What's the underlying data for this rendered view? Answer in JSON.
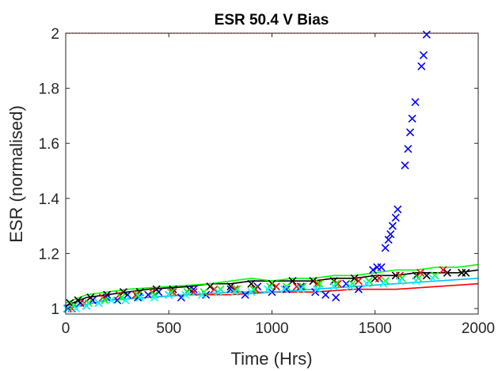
{
  "chart_data": {
    "type": "scatter",
    "title": "ESR 50.4 V Bias",
    "xlabel": "Time (Hrs)",
    "ylabel": "ESR (normalised)",
    "xlim": [
      0,
      2000
    ],
    "ylim": [
      0.98,
      2.0
    ],
    "xticks": [
      0,
      500,
      1000,
      1500,
      2000
    ],
    "yticks": [
      1,
      1.2,
      1.4,
      1.6,
      1.8,
      2
    ],
    "grid": false,
    "legend": "none",
    "reference_line": {
      "y": 2.0,
      "color": "#ff0000",
      "style": "dotted"
    },
    "series": [
      {
        "color": "#0000ff",
        "marker": "x",
        "points": [
          [
            10,
            1.0
          ],
          [
            40,
            1.01
          ],
          [
            70,
            1.02
          ],
          [
            100,
            1.01
          ],
          [
            130,
            1.03
          ],
          [
            160,
            1.02
          ],
          [
            200,
            1.04
          ],
          [
            250,
            1.03
          ],
          [
            300,
            1.05
          ],
          [
            350,
            1.04
          ],
          [
            400,
            1.05
          ],
          [
            450,
            1.06
          ],
          [
            500,
            1.05
          ],
          [
            560,
            1.04
          ],
          [
            620,
            1.07
          ],
          [
            680,
            1.05
          ],
          [
            740,
            1.06
          ],
          [
            800,
            1.07
          ],
          [
            870,
            1.05
          ],
          [
            930,
            1.08
          ],
          [
            1000,
            1.06
          ],
          [
            1070,
            1.07
          ],
          [
            1140,
            1.08
          ],
          [
            1210,
            1.06
          ],
          [
            1260,
            1.05
          ],
          [
            1310,
            1.04
          ],
          [
            1360,
            1.09
          ],
          [
            1420,
            1.07
          ],
          [
            1470,
            1.1
          ],
          [
            1490,
            1.14
          ],
          [
            1510,
            1.15
          ],
          [
            1530,
            1.15
          ],
          [
            1550,
            1.22
          ],
          [
            1565,
            1.25
          ],
          [
            1575,
            1.27
          ],
          [
            1585,
            1.3
          ],
          [
            1600,
            1.33
          ],
          [
            1610,
            1.36
          ],
          [
            1645,
            1.52
          ],
          [
            1660,
            1.58
          ],
          [
            1670,
            1.64
          ],
          [
            1680,
            1.69
          ],
          [
            1695,
            1.75
          ],
          [
            1725,
            1.88
          ],
          [
            1735,
            1.92
          ],
          [
            1750,
            1.995
          ]
        ]
      },
      {
        "color": "#000000",
        "marker": "x",
        "points": [
          [
            20,
            1.02
          ],
          [
            60,
            1.03
          ],
          [
            120,
            1.04
          ],
          [
            200,
            1.05
          ],
          [
            280,
            1.06
          ],
          [
            360,
            1.06
          ],
          [
            440,
            1.07
          ],
          [
            520,
            1.07
          ],
          [
            600,
            1.07
          ],
          [
            700,
            1.08
          ],
          [
            800,
            1.08
          ],
          [
            900,
            1.09
          ],
          [
            1000,
            1.09
          ],
          [
            1100,
            1.1
          ],
          [
            1200,
            1.1
          ],
          [
            1300,
            1.1
          ],
          [
            1400,
            1.11
          ],
          [
            1500,
            1.11
          ],
          [
            1600,
            1.12
          ],
          [
            1700,
            1.12
          ],
          [
            1750,
            1.12
          ],
          [
            1850,
            1.13
          ],
          [
            1920,
            1.13
          ],
          [
            1940,
            1.13
          ]
        ]
      },
      {
        "color": "#ff0000",
        "marker": "x",
        "points": [
          [
            30,
            1.0
          ],
          [
            90,
            1.02
          ],
          [
            180,
            1.04
          ],
          [
            260,
            1.05
          ],
          [
            340,
            1.05
          ],
          [
            420,
            1.06
          ],
          [
            520,
            1.06
          ],
          [
            620,
            1.06
          ],
          [
            720,
            1.07
          ],
          [
            820,
            1.07
          ],
          [
            920,
            1.07
          ],
          [
            1020,
            1.08
          ],
          [
            1120,
            1.08
          ],
          [
            1220,
            1.09
          ],
          [
            1320,
            1.09
          ],
          [
            1420,
            1.1
          ],
          [
            1520,
            1.11
          ],
          [
            1620,
            1.12
          ],
          [
            1720,
            1.13
          ],
          [
            1830,
            1.14
          ]
        ]
      },
      {
        "color": "#00ff00",
        "marker": "x",
        "points": [
          [
            40,
            1.01
          ],
          [
            110,
            1.02
          ],
          [
            190,
            1.03
          ],
          [
            270,
            1.04
          ],
          [
            350,
            1.05
          ],
          [
            430,
            1.05
          ],
          [
            510,
            1.06
          ],
          [
            590,
            1.06
          ],
          [
            670,
            1.06
          ],
          [
            750,
            1.07
          ],
          [
            830,
            1.07
          ],
          [
            910,
            1.07
          ],
          [
            990,
            1.08
          ],
          [
            1070,
            1.08
          ],
          [
            1150,
            1.08
          ],
          [
            1230,
            1.09
          ],
          [
            1310,
            1.09
          ],
          [
            1390,
            1.09
          ],
          [
            1470,
            1.1
          ],
          [
            1550,
            1.1
          ],
          [
            1630,
            1.11
          ],
          [
            1710,
            1.11
          ],
          [
            1790,
            1.12
          ]
        ]
      },
      {
        "color": "#00ffff",
        "marker": "x",
        "points": [
          [
            5,
            1.0
          ],
          [
            50,
            1.0
          ],
          [
            100,
            1.01
          ],
          [
            160,
            1.02
          ],
          [
            220,
            1.03
          ],
          [
            290,
            1.03
          ],
          [
            360,
            1.04
          ],
          [
            430,
            1.04
          ],
          [
            500,
            1.05
          ],
          [
            580,
            1.05
          ],
          [
            660,
            1.05
          ],
          [
            740,
            1.06
          ],
          [
            820,
            1.06
          ],
          [
            900,
            1.06
          ],
          [
            980,
            1.07
          ],
          [
            1060,
            1.07
          ],
          [
            1140,
            1.07
          ],
          [
            1220,
            1.07
          ],
          [
            1300,
            1.08
          ],
          [
            1380,
            1.08
          ],
          [
            1460,
            1.09
          ],
          [
            1540,
            1.09
          ],
          [
            1620,
            1.1
          ],
          [
            1700,
            1.1
          ],
          [
            1780,
            1.11
          ]
        ]
      },
      {
        "color": "#000000",
        "marker": "line",
        "points": [
          [
            0,
            1.01
          ],
          [
            100,
            1.04
          ],
          [
            200,
            1.05
          ],
          [
            300,
            1.06
          ],
          [
            400,
            1.07
          ],
          [
            500,
            1.075
          ],
          [
            600,
            1.08
          ],
          [
            700,
            1.09
          ],
          [
            800,
            1.09
          ],
          [
            900,
            1.1
          ],
          [
            1000,
            1.1
          ],
          [
            1100,
            1.1
          ],
          [
            1200,
            1.1
          ],
          [
            1300,
            1.11
          ],
          [
            1400,
            1.11
          ],
          [
            1500,
            1.12
          ],
          [
            1600,
            1.12
          ],
          [
            1700,
            1.13
          ],
          [
            1800,
            1.13
          ],
          [
            1900,
            1.13
          ],
          [
            2000,
            1.14
          ]
        ]
      },
      {
        "color": "#00ff00",
        "marker": "line",
        "points": [
          [
            0,
            1.02
          ],
          [
            100,
            1.05
          ],
          [
            200,
            1.06
          ],
          [
            300,
            1.07
          ],
          [
            400,
            1.075
          ],
          [
            500,
            1.08
          ],
          [
            600,
            1.085
          ],
          [
            700,
            1.09
          ],
          [
            800,
            1.1
          ],
          [
            900,
            1.11
          ],
          [
            1000,
            1.1
          ],
          [
            1100,
            1.11
          ],
          [
            1200,
            1.11
          ],
          [
            1300,
            1.12
          ],
          [
            1400,
            1.12
          ],
          [
            1500,
            1.13
          ],
          [
            1600,
            1.14
          ],
          [
            1700,
            1.14
          ],
          [
            1800,
            1.15
          ],
          [
            1900,
            1.15
          ],
          [
            2000,
            1.16
          ]
        ]
      },
      {
        "color": "#ff0000",
        "marker": "line",
        "points": [
          [
            0,
            1.0
          ],
          [
            200,
            1.03
          ],
          [
            400,
            1.04
          ],
          [
            600,
            1.05
          ],
          [
            800,
            1.05
          ],
          [
            1000,
            1.06
          ],
          [
            1200,
            1.06
          ],
          [
            1400,
            1.07
          ],
          [
            1600,
            1.07
          ],
          [
            1800,
            1.08
          ],
          [
            2000,
            1.09
          ]
        ]
      },
      {
        "color": "#00bfff",
        "marker": "line",
        "points": [
          [
            0,
            1.0
          ],
          [
            200,
            1.03
          ],
          [
            400,
            1.04
          ],
          [
            600,
            1.05
          ],
          [
            800,
            1.06
          ],
          [
            1000,
            1.06
          ],
          [
            1200,
            1.07
          ],
          [
            1400,
            1.08
          ],
          [
            1600,
            1.09
          ],
          [
            1800,
            1.1
          ],
          [
            2000,
            1.11
          ]
        ]
      }
    ]
  }
}
